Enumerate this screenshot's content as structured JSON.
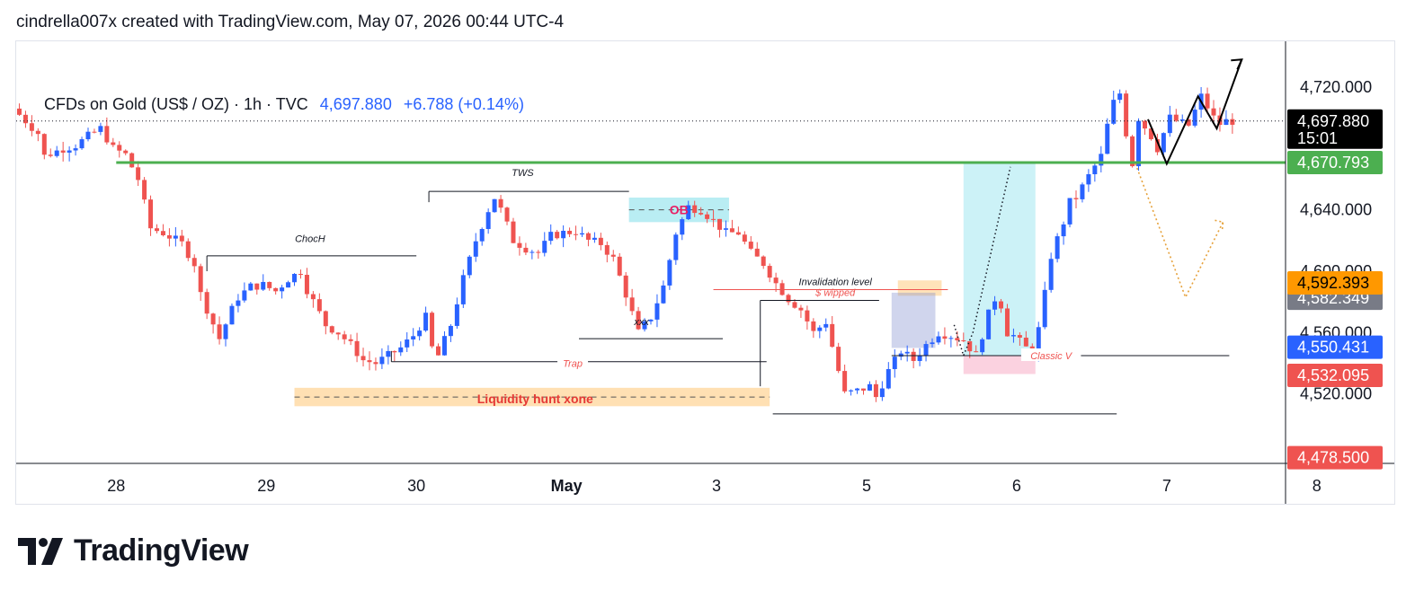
{
  "attribution": "cindrella007x created with TradingView.com, May 07, 2026 00:44 UTC-4",
  "symbol": {
    "name": "CFDs on Gold (US$ / OZ) · 1h · TVC",
    "price": "4,697.880",
    "change": "+6.788 (+0.14%)"
  },
  "logo": {
    "text": "TradingView",
    "icon": "tradingview-logo-icon"
  },
  "colors": {
    "up": "#2962ff",
    "down": "#ef5350",
    "green_line": "#4caf50",
    "text": "#131722"
  },
  "chart_data": {
    "type": "candlestick",
    "x_unit": "hours since Apr 27 00:00 (chart time)",
    "ylim": [
      4480,
      4740
    ],
    "xlim": [
      8,
      204
    ],
    "x_ticks": [
      {
        "x": 24,
        "label": "28",
        "bold": false
      },
      {
        "x": 48,
        "label": "29",
        "bold": false
      },
      {
        "x": 72,
        "label": "30",
        "bold": false
      },
      {
        "x": 96,
        "label": "May",
        "bold": true
      },
      {
        "x": 120,
        "label": "3",
        "bold": false
      },
      {
        "x": 144,
        "label": "5",
        "bold": false
      },
      {
        "x": 168,
        "label": "6",
        "bold": false
      },
      {
        "x": 192,
        "label": "7",
        "bold": false
      },
      {
        "x": 216,
        "label": "8",
        "bold": false
      }
    ],
    "y_ticks": [
      {
        "v": 4720,
        "label": "4,720.000"
      },
      {
        "v": 4640,
        "label": "4,640.000"
      },
      {
        "v": 4600,
        "label": "4,600.000"
      },
      {
        "v": 4560,
        "label": "4,560.000"
      },
      {
        "v": 4520,
        "label": "4,520.000"
      },
      {
        "v": 4480,
        "label": "4,480.000"
      }
    ],
    "price_badges": [
      {
        "v": 4697.88,
        "label": "4,697.880",
        "sub": "15:01",
        "bg": "#000000",
        "fg": "#ffffff"
      },
      {
        "v": 4670.793,
        "label": "4,670.793",
        "bg": "#4caf50",
        "fg": "#ffffff"
      },
      {
        "v": 4592.393,
        "label": "4,592.393",
        "bg": "#ff9800",
        "fg": "#000000"
      },
      {
        "v": 4582.349,
        "label": "4,582.349",
        "bg": "#787b86",
        "fg": "#ffffff"
      },
      {
        "v": 4550.431,
        "label": "4,550.431",
        "bg": "#2962ff",
        "fg": "#ffffff"
      },
      {
        "v": 4532.095,
        "label": "4,532.095",
        "bg": "#ef5350",
        "fg": "#ffffff"
      },
      {
        "v": 4478.5,
        "label": "4,478.500",
        "bg": "#ef5350",
        "fg": "#ffffff"
      }
    ],
    "path": [
      [
        8,
        4706
      ],
      [
        12,
        4690
      ],
      [
        13,
        4675
      ],
      [
        16,
        4680
      ],
      [
        18,
        4682
      ],
      [
        20,
        4688
      ],
      [
        22,
        4693
      ],
      [
        24,
        4680
      ],
      [
        26,
        4676
      ],
      [
        28,
        4660
      ],
      [
        30,
        4628
      ],
      [
        32,
        4625
      ],
      [
        35,
        4618
      ],
      [
        37,
        4605
      ],
      [
        38,
        4585
      ],
      [
        41,
        4556
      ],
      [
        43,
        4575
      ],
      [
        44,
        4583
      ],
      [
        46,
        4590
      ],
      [
        48,
        4591
      ],
      [
        50,
        4587
      ],
      [
        52,
        4595
      ],
      [
        54,
        4600
      ],
      [
        55,
        4588
      ],
      [
        58,
        4565
      ],
      [
        60,
        4560
      ],
      [
        62,
        4552
      ],
      [
        64,
        4542
      ],
      [
        66,
        4540
      ],
      [
        68,
        4545
      ],
      [
        70,
        4550
      ],
      [
        72,
        4558
      ],
      [
        74,
        4570
      ],
      [
        75,
        4550
      ],
      [
        76,
        4545
      ],
      [
        78,
        4565
      ],
      [
        80,
        4595
      ],
      [
        82,
        4620
      ],
      [
        84,
        4640
      ],
      [
        85,
        4648
      ],
      [
        86,
        4640
      ],
      [
        88,
        4620
      ],
      [
        90,
        4615
      ],
      [
        92,
        4612
      ],
      [
        94,
        4623
      ],
      [
        96,
        4625
      ],
      [
        98,
        4626
      ],
      [
        100,
        4620
      ],
      [
        102,
        4618
      ],
      [
        104,
        4608
      ],
      [
        106,
        4585
      ],
      [
        108,
        4560
      ],
      [
        110,
        4570
      ],
      [
        112,
        4590
      ],
      [
        114,
        4625
      ],
      [
        116,
        4642
      ],
      [
        118,
        4640
      ],
      [
        120,
        4633
      ],
      [
        122,
        4625
      ],
      [
        124,
        4625
      ],
      [
        126,
        4612
      ],
      [
        128,
        4605
      ],
      [
        130,
        4592
      ],
      [
        132,
        4582
      ],
      [
        134,
        4575
      ],
      [
        136,
        4560
      ],
      [
        138,
        4567
      ],
      [
        140,
        4535
      ],
      [
        141,
        4520
      ],
      [
        143,
        4522
      ],
      [
        145,
        4525
      ],
      [
        146,
        4518
      ],
      [
        148,
        4535
      ],
      [
        150,
        4548
      ],
      [
        152,
        4542
      ],
      [
        154,
        4552
      ],
      [
        156,
        4560
      ],
      [
        158,
        4558
      ],
      [
        160,
        4555
      ],
      [
        162,
        4545
      ],
      [
        164,
        4572
      ],
      [
        165,
        4582
      ],
      [
        166,
        4578
      ],
      [
        167,
        4560
      ],
      [
        168,
        4558
      ],
      [
        170,
        4550
      ],
      [
        171,
        4548
      ],
      [
        172,
        4562
      ],
      [
        173,
        4585
      ],
      [
        174,
        4610
      ],
      [
        176,
        4632
      ],
      [
        177,
        4645
      ],
      [
        178,
        4648
      ],
      [
        180,
        4662
      ],
      [
        182,
        4675
      ],
      [
        183,
        4695
      ],
      [
        184,
        4710
      ],
      [
        185,
        4716
      ],
      [
        186,
        4690
      ],
      [
        187,
        4670
      ],
      [
        188,
        4700
      ],
      [
        190,
        4688
      ],
      [
        191,
        4680
      ],
      [
        192,
        4690
      ],
      [
        193,
        4700
      ],
      [
        194,
        4698
      ],
      [
        196,
        4695
      ],
      [
        198,
        4714
      ],
      [
        200,
        4700
      ],
      [
        201,
        4696
      ],
      [
        202,
        4697.88
      ]
    ],
    "last_price": 4697.88,
    "horizontal_levels": [
      {
        "v": 4670.793,
        "x1": 24,
        "x2": 214,
        "color": "#4caf50",
        "width": 3
      }
    ],
    "zones": [
      {
        "x1": 52.5,
        "x2": 128.5,
        "y1": 4512,
        "y2": 4524,
        "color": "#ffcc80",
        "opacity": 0.6
      },
      {
        "x1": 106,
        "x2": 122,
        "y1": 4632,
        "y2": 4648,
        "color": "#80deea",
        "opacity": 0.55
      },
      {
        "x1": 149,
        "x2": 156,
        "y1": 4584,
        "y2": 4594,
        "color": "#ffcc80",
        "opacity": 0.55
      },
      {
        "x1": 148,
        "x2": 155,
        "y1": 4550,
        "y2": 4586,
        "color": "#7986cb",
        "opacity": 0.35
      },
      {
        "x1": 159.5,
        "x2": 171,
        "y1": 4545,
        "y2": 4670.793,
        "color": "#80deea",
        "opacity": 0.4
      },
      {
        "x1": 159.5,
        "x2": 171,
        "y1": 4533,
        "y2": 4545,
        "color": "#f48fb1",
        "opacity": 0.4
      }
    ],
    "segments": [
      {
        "x1": 38.5,
        "y1": 4610,
        "x2": 72,
        "y2": 4610,
        "color": "#131722"
      },
      {
        "x1": 74,
        "y1": 4652,
        "x2": 106,
        "y2": 4652,
        "color": "#131722"
      },
      {
        "x1": 98,
        "y1": 4556,
        "x2": 121,
        "y2": 4556,
        "color": "#131722"
      },
      {
        "x1": 68,
        "y1": 4541,
        "x2": 128,
        "y2": 4541,
        "color": "#131722"
      },
      {
        "x1": 119.5,
        "y1": 4588,
        "x2": 157,
        "y2": 4588,
        "color": "#ef5350"
      },
      {
        "x1": 127,
        "y1": 4581,
        "x2": 146,
        "y2": 4581,
        "color": "#131722"
      },
      {
        "x1": 148,
        "y1": 4545,
        "x2": 202,
        "y2": 4545,
        "color": "#131722"
      },
      {
        "x1": 129,
        "y1": 4507,
        "x2": 184,
        "y2": 4507,
        "color": "#131722"
      }
    ],
    "labels": [
      {
        "x": 55,
        "v": 4616,
        "text": "ChocH",
        "color": "#131722",
        "italic": true,
        "size": 11
      },
      {
        "x": 89,
        "v": 4659,
        "text": "TWS",
        "color": "#131722",
        "italic": true,
        "size": 11
      },
      {
        "x": 114,
        "v": 4640,
        "text": "OB",
        "color": "#e91e63",
        "bold": true,
        "size": 14
      },
      {
        "x": 108,
        "v": 4562,
        "text": "xxx",
        "color": "#131722",
        "italic": true,
        "size": 11
      },
      {
        "x": 97,
        "v": 4540,
        "text": "Trap",
        "color": "#ef5350",
        "italic": true,
        "size": 11
      },
      {
        "x": 91,
        "v": 4517,
        "text": "Liquidity hunt xone",
        "color": "#e53935",
        "bold": true,
        "size": 14
      },
      {
        "x": 139,
        "v": 4588,
        "text": "Invalidation level",
        "color": "#131722",
        "italic": true,
        "size": 11
      },
      {
        "x": 139,
        "v": 4581,
        "text": "$ wipped",
        "color": "#ef5350",
        "italic": true,
        "size": 11
      },
      {
        "x": 173.5,
        "v": 4545,
        "text": "Classic V",
        "color": "#ef5350",
        "italic": true,
        "size": 11
      }
    ],
    "projection_up": [
      [
        189,
        4699
      ],
      [
        192,
        4670
      ],
      [
        197,
        4714
      ],
      [
        200,
        4693
      ],
      [
        204,
        4738
      ]
    ],
    "projection_down": [
      [
        187,
        4670
      ],
      [
        195,
        4583
      ],
      [
        201,
        4632
      ]
    ],
    "dotted_v": [
      [
        158,
        4565
      ],
      [
        159.5,
        4545
      ],
      [
        161,
        4560
      ],
      [
        167,
        4668
      ]
    ]
  }
}
